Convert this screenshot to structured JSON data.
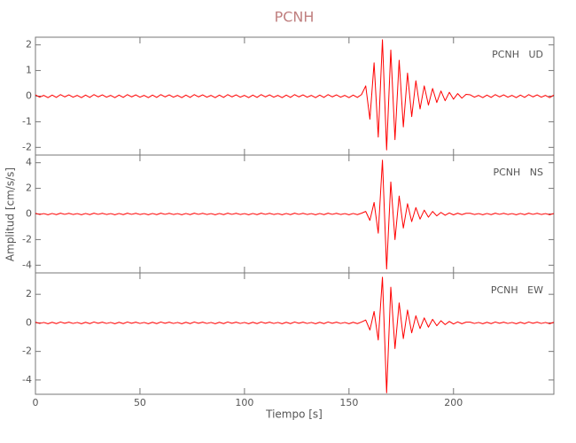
{
  "chart_data": [
    {
      "type": "line",
      "title": "PCNH",
      "label": "PCNH   UD",
      "x": [
        0,
        2,
        4,
        6,
        8,
        10,
        12,
        14,
        16,
        18,
        20,
        22,
        24,
        26,
        28,
        30,
        32,
        34,
        36,
        38,
        40,
        42,
        44,
        46,
        48,
        50,
        52,
        54,
        56,
        58,
        60,
        62,
        64,
        66,
        68,
        70,
        72,
        74,
        76,
        78,
        80,
        82,
        84,
        86,
        88,
        90,
        92,
        94,
        96,
        98,
        100,
        102,
        104,
        106,
        108,
        110,
        112,
        114,
        116,
        118,
        120,
        122,
        124,
        126,
        128,
        130,
        132,
        134,
        136,
        138,
        140,
        142,
        144,
        146,
        148,
        150,
        152,
        154,
        156,
        158,
        160,
        162,
        164,
        166,
        168,
        170,
        172,
        174,
        176,
        178,
        180,
        182,
        184,
        186,
        188,
        190,
        192,
        194,
        196,
        198,
        200,
        202,
        204,
        206,
        208,
        210,
        212,
        214,
        216,
        218,
        220,
        222,
        224,
        226,
        228,
        230,
        232,
        234,
        236,
        238,
        240,
        242,
        244,
        246,
        248
      ],
      "series": [
        {
          "name": "UD",
          "color": "#ff0000",
          "values": [
            0.05,
            -0.04,
            0.03,
            -0.06,
            0.04,
            -0.05,
            0.06,
            -0.03,
            0.05,
            -0.04,
            0.03,
            -0.06,
            0.04,
            -0.05,
            0.06,
            -0.03,
            0.05,
            -0.04,
            0.03,
            -0.06,
            0.04,
            -0.05,
            0.06,
            -0.03,
            0.05,
            -0.04,
            0.03,
            -0.06,
            0.04,
            -0.05,
            0.06,
            -0.03,
            0.05,
            -0.04,
            0.03,
            -0.06,
            0.04,
            -0.05,
            0.06,
            -0.03,
            0.05,
            -0.04,
            0.03,
            -0.06,
            0.04,
            -0.05,
            0.06,
            -0.03,
            0.05,
            -0.04,
            0.03,
            -0.06,
            0.04,
            -0.05,
            0.06,
            -0.03,
            0.05,
            -0.04,
            0.03,
            -0.06,
            0.04,
            -0.05,
            0.06,
            -0.03,
            0.05,
            -0.04,
            0.03,
            -0.06,
            0.04,
            -0.05,
            0.06,
            -0.03,
            0.05,
            -0.04,
            0.03,
            -0.06,
            0.04,
            -0.05,
            0.06,
            0.4,
            -0.9,
            1.3,
            -1.6,
            2.2,
            -2.1,
            1.8,
            -1.7,
            1.4,
            -1.2,
            0.9,
            -0.8,
            0.6,
            -0.5,
            0.4,
            -0.35,
            0.3,
            -0.25,
            0.2,
            -0.18,
            0.15,
            -0.12,
            0.1,
            -0.08,
            0.07,
            0.05,
            -0.04,
            0.03,
            -0.06,
            0.04,
            -0.05,
            0.06,
            -0.03,
            0.05,
            -0.04,
            0.03,
            -0.06,
            0.04,
            -0.05,
            0.06,
            -0.03,
            0.05,
            -0.04,
            0.03,
            -0.06,
            0.04
          ]
        }
      ],
      "xlim": [
        0,
        248
      ],
      "xticks": [
        0,
        50,
        100,
        150,
        200
      ],
      "ylim": [
        -2.3,
        2.3
      ],
      "yticks": [
        -2,
        -1,
        0,
        1,
        2
      ]
    },
    {
      "type": "line",
      "label": "PCNH   NS",
      "y_label": "Amplitud [cm/s/s]",
      "x": [
        0,
        2,
        4,
        6,
        8,
        10,
        12,
        14,
        16,
        18,
        20,
        22,
        24,
        26,
        28,
        30,
        32,
        34,
        36,
        38,
        40,
        42,
        44,
        46,
        48,
        50,
        52,
        54,
        56,
        58,
        60,
        62,
        64,
        66,
        68,
        70,
        72,
        74,
        76,
        78,
        80,
        82,
        84,
        86,
        88,
        90,
        92,
        94,
        96,
        98,
        100,
        102,
        104,
        106,
        108,
        110,
        112,
        114,
        116,
        118,
        120,
        122,
        124,
        126,
        128,
        130,
        132,
        134,
        136,
        138,
        140,
        142,
        144,
        146,
        148,
        150,
        152,
        154,
        156,
        158,
        160,
        162,
        164,
        166,
        168,
        170,
        172,
        174,
        176,
        178,
        180,
        182,
        184,
        186,
        188,
        190,
        192,
        194,
        196,
        198,
        200,
        202,
        204,
        206,
        208,
        210,
        212,
        214,
        216,
        218,
        220,
        222,
        224,
        226,
        228,
        230,
        232,
        234,
        236,
        238,
        240,
        242,
        244,
        246,
        248
      ],
      "series": [
        {
          "name": "NS",
          "color": "#ff0000",
          "values": [
            0.05,
            -0.04,
            0.03,
            -0.06,
            0.04,
            -0.05,
            0.06,
            -0.03,
            0.05,
            -0.04,
            0.03,
            -0.06,
            0.04,
            -0.05,
            0.06,
            -0.03,
            0.05,
            -0.04,
            0.03,
            -0.06,
            0.04,
            -0.05,
            0.06,
            -0.03,
            0.05,
            -0.04,
            0.03,
            -0.06,
            0.04,
            -0.05,
            0.06,
            -0.03,
            0.05,
            -0.04,
            0.03,
            -0.06,
            0.04,
            -0.05,
            0.06,
            -0.03,
            0.05,
            -0.04,
            0.03,
            -0.06,
            0.04,
            -0.05,
            0.06,
            -0.03,
            0.05,
            -0.04,
            0.03,
            -0.06,
            0.04,
            -0.05,
            0.06,
            -0.03,
            0.05,
            -0.04,
            0.03,
            -0.06,
            0.04,
            -0.05,
            0.06,
            -0.03,
            0.05,
            -0.04,
            0.03,
            -0.06,
            0.04,
            -0.05,
            0.06,
            -0.03,
            0.05,
            -0.04,
            0.03,
            -0.06,
            0.04,
            -0.05,
            0.06,
            0.2,
            -0.5,
            0.9,
            -1.5,
            4.2,
            -4.3,
            2.5,
            -2.0,
            1.4,
            -1.1,
            0.8,
            -0.6,
            0.5,
            -0.4,
            0.3,
            -0.25,
            0.2,
            -0.15,
            0.12,
            -0.1,
            0.08,
            -0.07,
            0.06,
            -0.05,
            0.05,
            0.05,
            -0.04,
            0.03,
            -0.06,
            0.04,
            -0.05,
            0.06,
            -0.03,
            0.05,
            -0.04,
            0.03,
            -0.06,
            0.04,
            -0.05,
            0.06,
            -0.03,
            0.05,
            -0.04,
            0.03,
            -0.06,
            0.04
          ]
        }
      ],
      "xlim": [
        0,
        248
      ],
      "xticks": [
        0,
        50,
        100,
        150,
        200
      ],
      "ylim": [
        -4.6,
        4.6
      ],
      "yticks": [
        -4,
        -2,
        0,
        2,
        4
      ]
    },
    {
      "type": "line",
      "label": "PCNH   EW",
      "x_label": "Tiempo [s]",
      "x": [
        0,
        2,
        4,
        6,
        8,
        10,
        12,
        14,
        16,
        18,
        20,
        22,
        24,
        26,
        28,
        30,
        32,
        34,
        36,
        38,
        40,
        42,
        44,
        46,
        48,
        50,
        52,
        54,
        56,
        58,
        60,
        62,
        64,
        66,
        68,
        70,
        72,
        74,
        76,
        78,
        80,
        82,
        84,
        86,
        88,
        90,
        92,
        94,
        96,
        98,
        100,
        102,
        104,
        106,
        108,
        110,
        112,
        114,
        116,
        118,
        120,
        122,
        124,
        126,
        128,
        130,
        132,
        134,
        136,
        138,
        140,
        142,
        144,
        146,
        148,
        150,
        152,
        154,
        156,
        158,
        160,
        162,
        164,
        166,
        168,
        170,
        172,
        174,
        176,
        178,
        180,
        182,
        184,
        186,
        188,
        190,
        192,
        194,
        196,
        198,
        200,
        202,
        204,
        206,
        208,
        210,
        212,
        214,
        216,
        218,
        220,
        222,
        224,
        226,
        228,
        230,
        232,
        234,
        236,
        238,
        240,
        242,
        244,
        246,
        248
      ],
      "series": [
        {
          "name": "EW",
          "color": "#ff0000",
          "values": [
            0.05,
            -0.04,
            0.03,
            -0.06,
            0.04,
            -0.05,
            0.06,
            -0.03,
            0.05,
            -0.04,
            0.03,
            -0.06,
            0.04,
            -0.05,
            0.06,
            -0.03,
            0.05,
            -0.04,
            0.03,
            -0.06,
            0.04,
            -0.05,
            0.06,
            -0.03,
            0.05,
            -0.04,
            0.03,
            -0.06,
            0.04,
            -0.05,
            0.06,
            -0.03,
            0.05,
            -0.04,
            0.03,
            -0.06,
            0.04,
            -0.05,
            0.06,
            -0.03,
            0.05,
            -0.04,
            0.03,
            -0.06,
            0.04,
            -0.05,
            0.06,
            -0.03,
            0.05,
            -0.04,
            0.03,
            -0.06,
            0.04,
            -0.05,
            0.06,
            -0.03,
            0.05,
            -0.04,
            0.03,
            -0.06,
            0.04,
            -0.05,
            0.06,
            -0.03,
            0.05,
            -0.04,
            0.03,
            -0.06,
            0.04,
            -0.05,
            0.06,
            -0.03,
            0.05,
            -0.04,
            0.03,
            -0.06,
            0.04,
            -0.05,
            0.06,
            0.2,
            -0.5,
            0.8,
            -1.2,
            3.2,
            -4.9,
            2.5,
            -1.8,
            1.4,
            -1.1,
            0.9,
            -0.7,
            0.5,
            -0.4,
            0.35,
            -0.3,
            0.25,
            -0.2,
            0.15,
            -0.12,
            0.1,
            -0.08,
            0.07,
            -0.06,
            0.05,
            0.05,
            -0.04,
            0.03,
            -0.06,
            0.04,
            -0.05,
            0.06,
            -0.03,
            0.05,
            -0.04,
            0.03,
            -0.06,
            0.04,
            -0.05,
            0.06,
            -0.03,
            0.05,
            -0.04,
            0.03,
            -0.06,
            0.04
          ]
        }
      ],
      "xlim": [
        0,
        248
      ],
      "xticks": [
        0,
        50,
        100,
        150,
        200
      ],
      "ylim": [
        -5,
        3.5
      ],
      "yticks": [
        -4,
        -2,
        0,
        2
      ]
    }
  ]
}
